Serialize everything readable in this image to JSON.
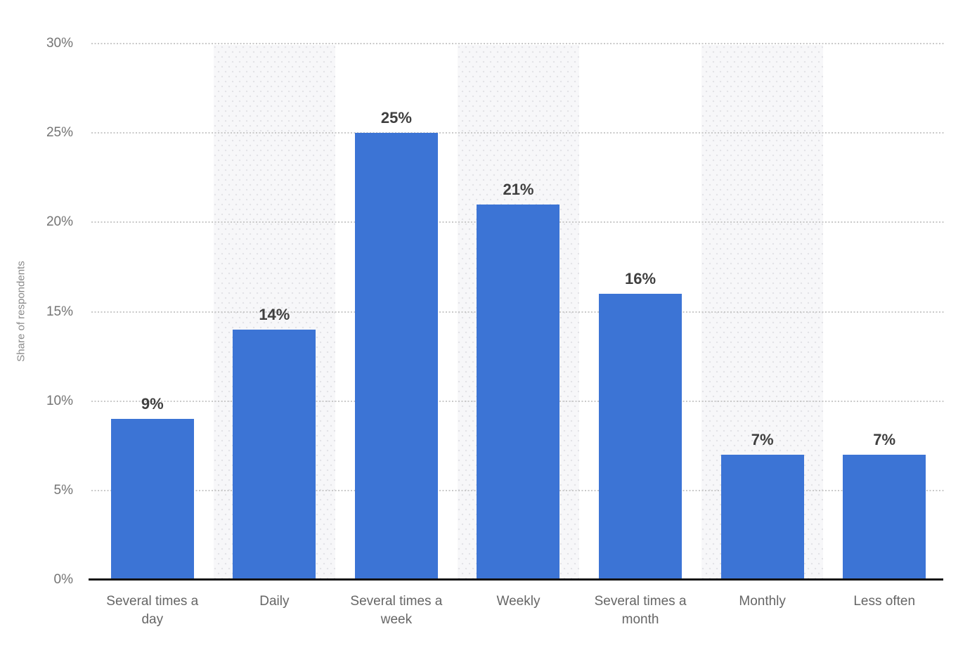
{
  "chart_data": {
    "type": "bar",
    "categories": [
      "Several times a\nday",
      "Daily",
      "Several times a\nweek",
      "Weekly",
      "Several times a\nmonth",
      "Monthly",
      "Less often"
    ],
    "values": [
      9,
      14,
      25,
      21,
      16,
      7,
      7
    ],
    "value_labels": [
      "9%",
      "14%",
      "25%",
      "21%",
      "16%",
      "7%",
      "7%"
    ],
    "title": "",
    "xlabel": "",
    "ylabel": "Share of respondents",
    "ylim": [
      0,
      30
    ],
    "yticks": [
      0,
      5,
      10,
      15,
      20,
      25,
      30
    ],
    "ytick_labels": [
      "0%",
      "5%",
      "10%",
      "15%",
      "20%",
      "25%",
      "30%"
    ],
    "grid": "horizontal-dotted",
    "legend": "none",
    "striped_column_indexes": [
      1,
      3,
      5
    ],
    "colors": {
      "bar": "#3c74d5",
      "value_label": "#3f3f3f",
      "axis_line": "#141414",
      "gridline": "#c9c9c9",
      "tick_label": "#747474",
      "x_label": "#666666",
      "y_title": "#8a8a8a",
      "band_background": "#f7f7f9",
      "band_dot": "#e2e2e6"
    }
  }
}
